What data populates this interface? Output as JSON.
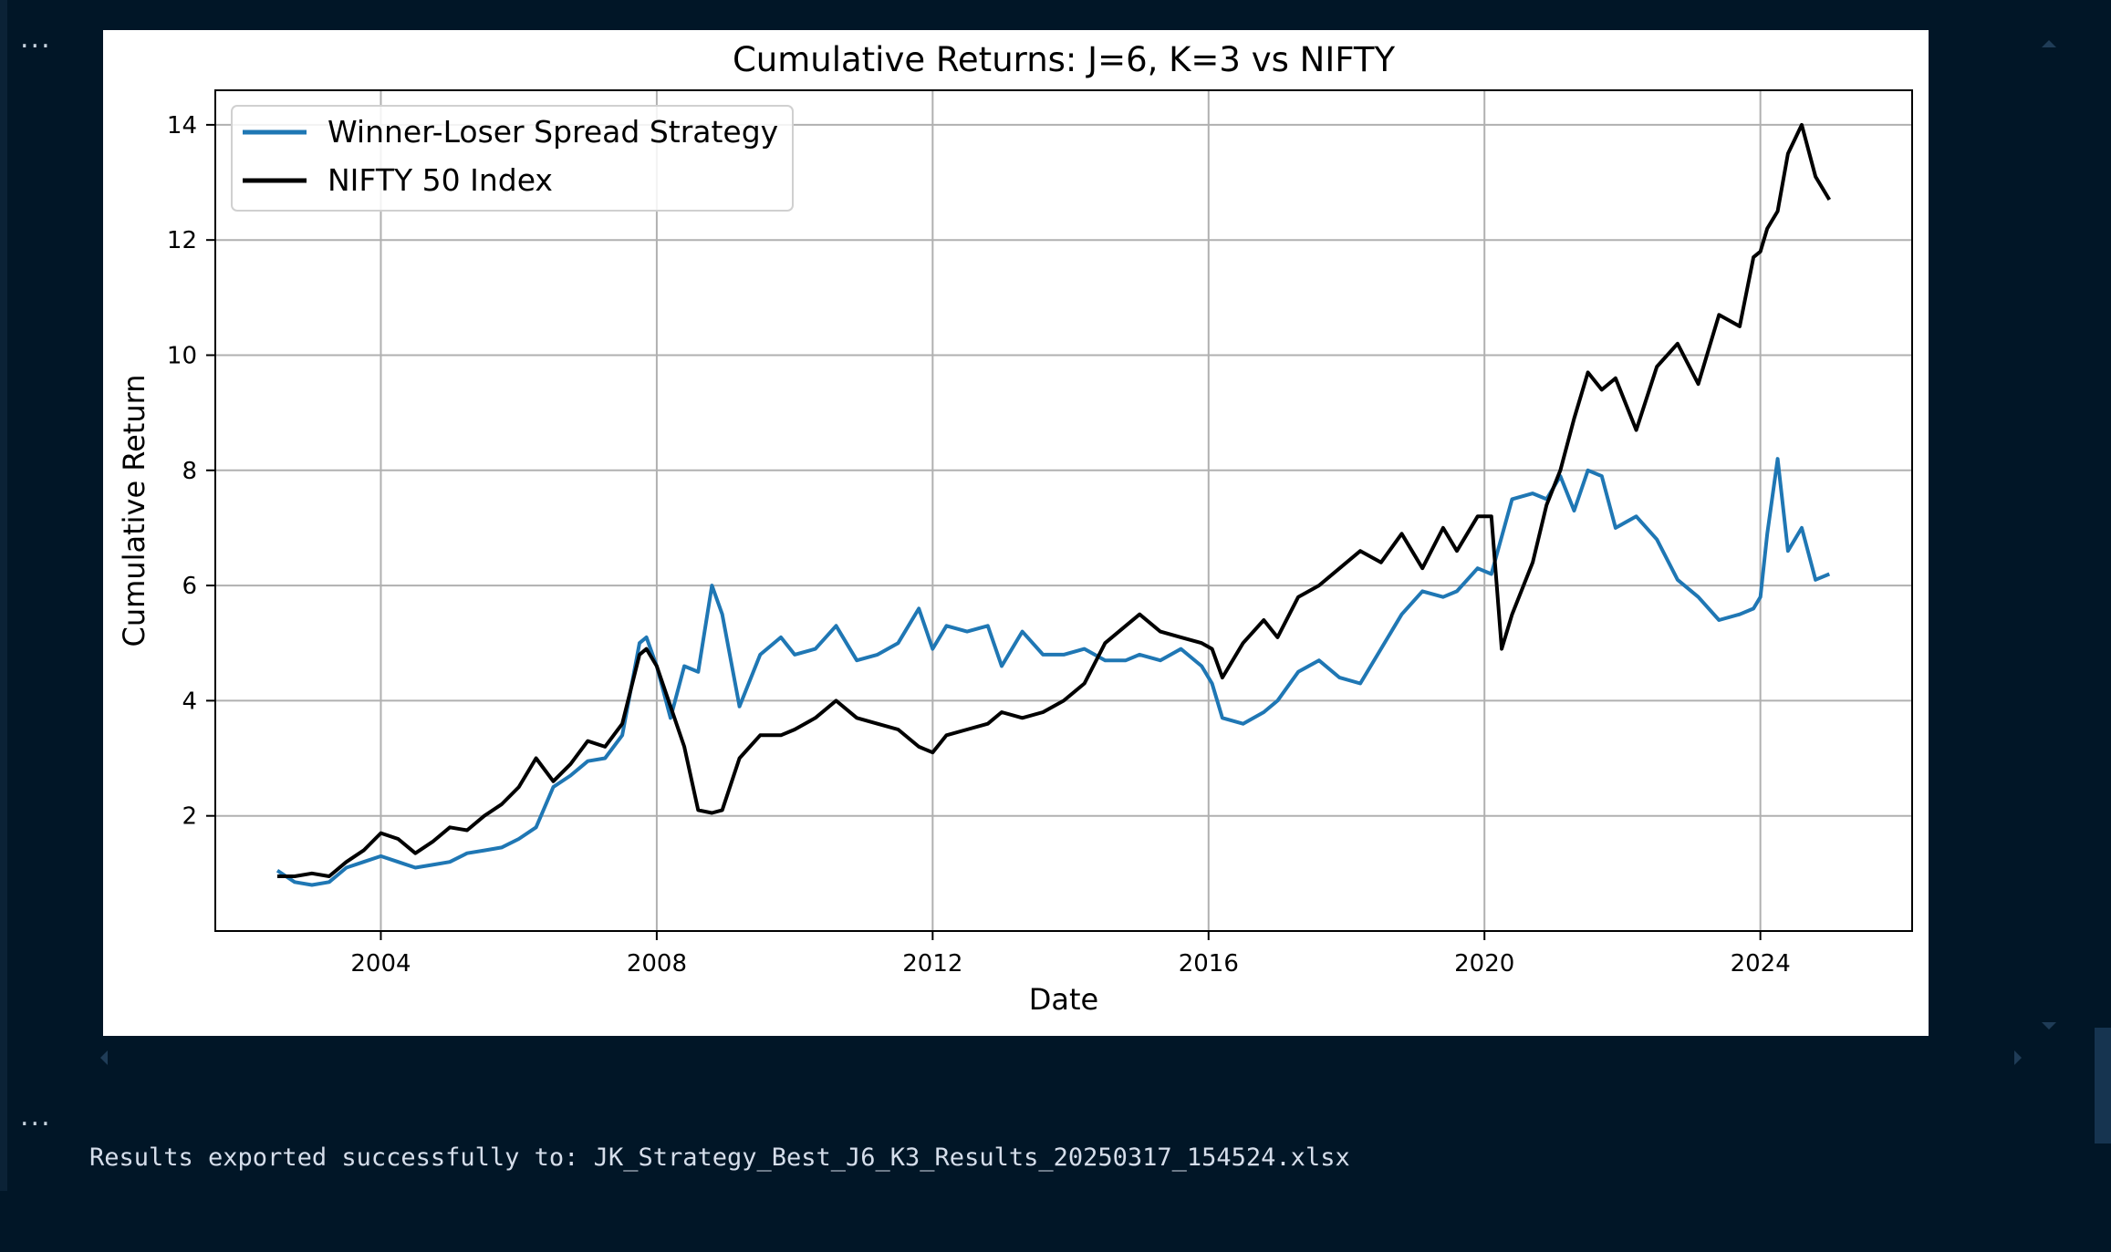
{
  "cells": {
    "ellipsis_1": "...",
    "ellipsis_2": "..."
  },
  "console": {
    "output_text": "Results exported successfully to: JK_Strategy_Best_J6_K3_Results_20250317_154524.xlsx"
  },
  "chart_data": {
    "type": "line",
    "title": "Cumulative Returns: J=6, K=3 vs NIFTY",
    "xlabel": "Date",
    "ylabel": "Cumulative Return",
    "xlim": [
      2001.6,
      2026.2
    ],
    "ylim": [
      0.0,
      14.6
    ],
    "x_ticks": [
      2004,
      2008,
      2012,
      2016,
      2020,
      2024
    ],
    "x_tick_labels": [
      "2004",
      "2008",
      "2012",
      "2016",
      "2020",
      "2024"
    ],
    "y_ticks": [
      2,
      4,
      6,
      8,
      10,
      12,
      14
    ],
    "y_tick_labels": [
      "2",
      "4",
      "6",
      "8",
      "10",
      "12",
      "14"
    ],
    "grid": true,
    "legend_position": "top-left",
    "series": [
      {
        "name": "Winner-Loser Spread Strategy",
        "color": "#1f77b4",
        "x": [
          2002.5,
          2002.75,
          2003.0,
          2003.25,
          2003.5,
          2003.75,
          2004.0,
          2004.25,
          2004.5,
          2004.75,
          2005.0,
          2005.25,
          2005.5,
          2005.75,
          2006.0,
          2006.25,
          2006.5,
          2006.75,
          2007.0,
          2007.25,
          2007.5,
          2007.75,
          2007.85,
          2008.0,
          2008.2,
          2008.4,
          2008.6,
          2008.8,
          2008.95,
          2009.2,
          2009.5,
          2009.8,
          2010.0,
          2010.3,
          2010.6,
          2010.9,
          2011.2,
          2011.5,
          2011.8,
          2012.0,
          2012.2,
          2012.5,
          2012.8,
          2013.0,
          2013.3,
          2013.6,
          2013.9,
          2014.2,
          2014.5,
          2014.8,
          2015.0,
          2015.3,
          2015.6,
          2015.9,
          2016.05,
          2016.2,
          2016.5,
          2016.8,
          2017.0,
          2017.3,
          2017.6,
          2017.9,
          2018.2,
          2018.5,
          2018.8,
          2019.1,
          2019.4,
          2019.6,
          2019.9,
          2020.1,
          2020.4,
          2020.7,
          2020.9,
          2021.1,
          2021.3,
          2021.5,
          2021.7,
          2021.9,
          2022.2,
          2022.5,
          2022.8,
          2023.1,
          2023.4,
          2023.7,
          2023.9,
          2024.0,
          2024.1,
          2024.25,
          2024.4,
          2024.6,
          2024.8,
          2025.0
        ],
        "y": [
          1.05,
          0.85,
          0.8,
          0.85,
          1.1,
          1.2,
          1.3,
          1.2,
          1.1,
          1.15,
          1.2,
          1.35,
          1.4,
          1.45,
          1.6,
          1.8,
          2.5,
          2.7,
          2.95,
          3.0,
          3.4,
          5.0,
          5.1,
          4.6,
          3.7,
          4.6,
          4.5,
          6.0,
          5.5,
          3.9,
          4.8,
          5.1,
          4.8,
          4.9,
          5.3,
          4.7,
          4.8,
          5.0,
          5.6,
          4.9,
          5.3,
          5.2,
          5.3,
          4.6,
          5.2,
          4.8,
          4.8,
          4.9,
          4.7,
          4.7,
          4.8,
          4.7,
          4.9,
          4.6,
          4.3,
          3.7,
          3.6,
          3.8,
          4.0,
          4.5,
          4.7,
          4.4,
          4.3,
          4.9,
          5.5,
          5.9,
          5.8,
          5.9,
          6.3,
          6.2,
          7.5,
          7.6,
          7.5,
          7.9,
          7.3,
          8.0,
          7.9,
          7.0,
          7.2,
          6.8,
          6.1,
          5.8,
          5.4,
          5.5,
          5.6,
          5.8,
          6.9,
          8.2,
          6.6,
          7.0,
          6.1,
          6.2
        ]
      },
      {
        "name": "NIFTY 50 Index",
        "color": "#000000",
        "x": [
          2002.5,
          2002.75,
          2003.0,
          2003.25,
          2003.5,
          2003.75,
          2004.0,
          2004.25,
          2004.5,
          2004.75,
          2005.0,
          2005.25,
          2005.5,
          2005.75,
          2006.0,
          2006.25,
          2006.5,
          2006.75,
          2007.0,
          2007.25,
          2007.5,
          2007.75,
          2007.85,
          2008.0,
          2008.2,
          2008.4,
          2008.6,
          2008.8,
          2008.95,
          2009.2,
          2009.5,
          2009.8,
          2010.0,
          2010.3,
          2010.6,
          2010.9,
          2011.2,
          2011.5,
          2011.8,
          2012.0,
          2012.2,
          2012.5,
          2012.8,
          2013.0,
          2013.3,
          2013.6,
          2013.9,
          2014.2,
          2014.5,
          2014.8,
          2015.0,
          2015.3,
          2015.6,
          2015.9,
          2016.05,
          2016.2,
          2016.5,
          2016.8,
          2017.0,
          2017.3,
          2017.6,
          2017.9,
          2018.2,
          2018.5,
          2018.8,
          2019.1,
          2019.4,
          2019.6,
          2019.9,
          2020.1,
          2020.25,
          2020.4,
          2020.7,
          2020.9,
          2021.1,
          2021.3,
          2021.5,
          2021.7,
          2021.9,
          2022.2,
          2022.5,
          2022.8,
          2023.1,
          2023.4,
          2023.7,
          2023.9,
          2024.0,
          2024.1,
          2024.25,
          2024.4,
          2024.6,
          2024.8,
          2025.0
        ],
        "y": [
          0.95,
          0.95,
          1.0,
          0.95,
          1.2,
          1.4,
          1.7,
          1.6,
          1.35,
          1.55,
          1.8,
          1.75,
          2.0,
          2.2,
          2.5,
          3.0,
          2.6,
          2.9,
          3.3,
          3.2,
          3.6,
          4.8,
          4.9,
          4.6,
          3.9,
          3.2,
          2.1,
          2.05,
          2.1,
          3.0,
          3.4,
          3.4,
          3.5,
          3.7,
          4.0,
          3.7,
          3.6,
          3.5,
          3.2,
          3.1,
          3.4,
          3.5,
          3.6,
          3.8,
          3.7,
          3.8,
          4.0,
          4.3,
          5.0,
          5.3,
          5.5,
          5.2,
          5.1,
          5.0,
          4.9,
          4.4,
          5.0,
          5.4,
          5.1,
          5.8,
          6.0,
          6.3,
          6.6,
          6.4,
          6.9,
          6.3,
          7.0,
          6.6,
          7.2,
          7.2,
          4.9,
          5.5,
          6.4,
          7.4,
          8.0,
          8.9,
          9.7,
          9.4,
          9.6,
          8.7,
          9.8,
          10.2,
          9.5,
          10.7,
          10.5,
          11.7,
          11.8,
          12.2,
          12.5,
          13.5,
          14.0,
          13.1,
          12.7
        ]
      }
    ]
  }
}
